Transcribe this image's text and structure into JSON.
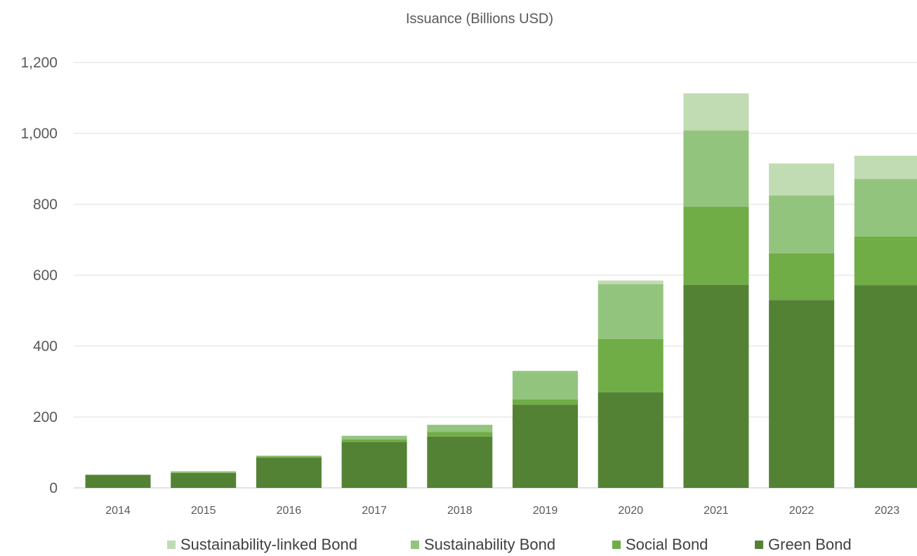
{
  "chart_data": {
    "type": "bar",
    "stacked": true,
    "title": "Issuance (Billions USD)",
    "xlabel": "",
    "ylabel": "",
    "ylim": [
      0,
      1200
    ],
    "yticks": [
      0,
      200,
      400,
      600,
      800,
      1000,
      1200
    ],
    "ytick_labels": [
      "0",
      "200",
      "400",
      "600",
      "800",
      "1,000",
      "1,200"
    ],
    "grid": true,
    "legend_position": "bottom",
    "categories": [
      "2014",
      "2015",
      "2016",
      "2017",
      "2018",
      "2019",
      "2020",
      "2021",
      "2022",
      "2023"
    ],
    "series": [
      {
        "name": "Green Bond",
        "color": "#548235",
        "values": [
          37,
          42,
          85,
          130,
          145,
          235,
          270,
          573,
          530,
          572
        ]
      },
      {
        "name": "Social Bond",
        "color": "#70ad47",
        "values": [
          0,
          2,
          3,
          7,
          13,
          15,
          150,
          220,
          132,
          137
        ]
      },
      {
        "name": "Sustainability Bond",
        "color": "#93c47d",
        "values": [
          0,
          3,
          3,
          10,
          20,
          80,
          155,
          215,
          163,
          163
        ]
      },
      {
        "name": "Sustainability-linked Bond",
        "color": "#c1dbb2",
        "values": [
          0,
          0,
          0,
          0,
          0,
          0,
          10,
          105,
          90,
          65
        ]
      }
    ],
    "legend_order": [
      "Sustainability-linked Bond",
      "Sustainability Bond",
      "Social Bond",
      "Green Bond"
    ]
  }
}
